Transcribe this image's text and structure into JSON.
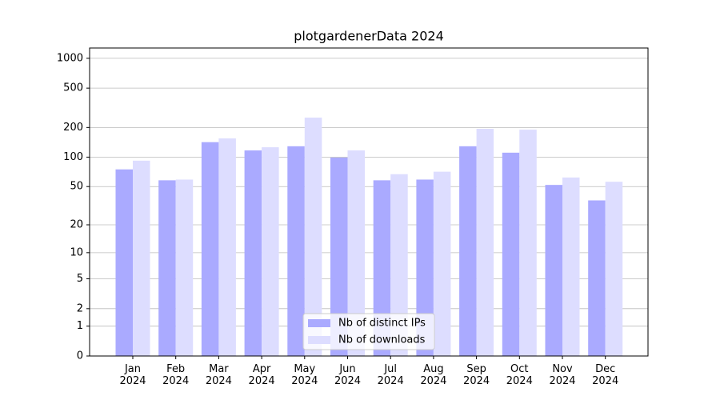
{
  "chart_data": {
    "type": "bar",
    "title": "plotgardenerData 2024",
    "categories": [
      "Jan\n2024",
      "Feb\n2024",
      "Mar\n2024",
      "Apr\n2024",
      "May\n2024",
      "Jun\n2024",
      "Jul\n2024",
      "Aug\n2024",
      "Sep\n2024",
      "Oct\n2024",
      "Nov\n2024",
      "Dec\n2024"
    ],
    "series": [
      {
        "name": "Nb of distinct IPs",
        "color": "#aaaaff",
        "values": [
          75,
          58,
          142,
          117,
          129,
          99,
          58,
          59,
          129,
          111,
          52,
          36
        ]
      },
      {
        "name": "Nb of downloads",
        "color": "#ddddff",
        "values": [
          92,
          59,
          155,
          126,
          252,
          117,
          67,
          71,
          194,
          190,
          62,
          56
        ]
      }
    ],
    "yscale": "log1p",
    "ylim": [
      0,
      1270
    ],
    "yticks": [
      0,
      1,
      2,
      5,
      10,
      20,
      50,
      100,
      200,
      500,
      1000
    ],
    "grid": true,
    "legend": "lower center"
  }
}
